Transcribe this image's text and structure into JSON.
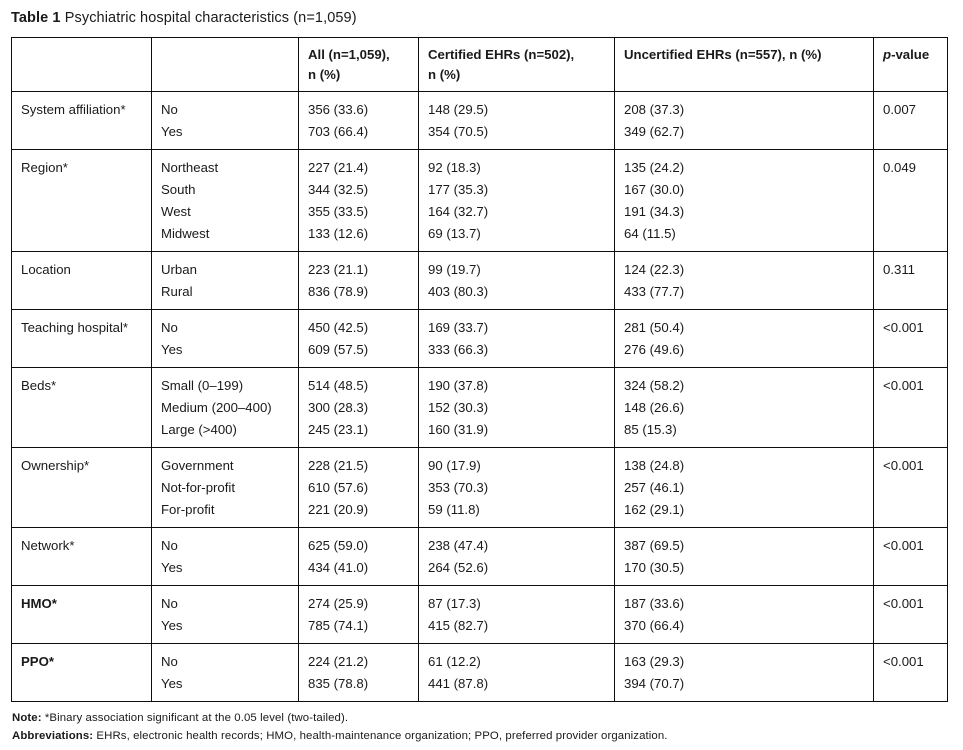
{
  "title": {
    "bold": "Table 1",
    "rest": " Psychiatric hospital characteristics (n=1,059)"
  },
  "table": {
    "header": {
      "all_line1": "All (n=1,059),",
      "all_line2": "n (%)",
      "certified_line1": "Certified EHRs (n=502),",
      "certified_line2": "n (%)",
      "uncertified": "Uncertified EHRs (n=557), n (%)",
      "p_italic": "p",
      "p_rest": "-value"
    },
    "groups": [
      {
        "category": "System affiliation*",
        "bold": false,
        "p": "0.007",
        "rows": [
          {
            "label": "No",
            "all": "356 (33.6)",
            "certified": "148 (29.5)",
            "uncertified": "208 (37.3)"
          },
          {
            "label": "Yes",
            "all": "703 (66.4)",
            "certified": "354 (70.5)",
            "uncertified": "349 (62.7)"
          }
        ]
      },
      {
        "category": "Region*",
        "bold": false,
        "p": "0.049",
        "rows": [
          {
            "label": "Northeast",
            "all": "227 (21.4)",
            "certified": "92 (18.3)",
            "uncertified": "135 (24.2)"
          },
          {
            "label": "South",
            "all": "344 (32.5)",
            "certified": "177 (35.3)",
            "uncertified": "167 (30.0)"
          },
          {
            "label": "West",
            "all": "355 (33.5)",
            "certified": "164 (32.7)",
            "uncertified": "191 (34.3)"
          },
          {
            "label": "Midwest",
            "all": "133 (12.6)",
            "certified": "69 (13.7)",
            "uncertified": "64 (11.5)"
          }
        ]
      },
      {
        "category": "Location",
        "bold": false,
        "p": "0.311",
        "rows": [
          {
            "label": "Urban",
            "all": "223 (21.1)",
            "certified": "99 (19.7)",
            "uncertified": "124 (22.3)"
          },
          {
            "label": "Rural",
            "all": "836 (78.9)",
            "certified": "403 (80.3)",
            "uncertified": "433 (77.7)"
          }
        ]
      },
      {
        "category": "Teaching hospital*",
        "bold": false,
        "p": "<0.001",
        "rows": [
          {
            "label": "No",
            "all": "450 (42.5)",
            "certified": "169 (33.7)",
            "uncertified": "281 (50.4)"
          },
          {
            "label": "Yes",
            "all": "609 (57.5)",
            "certified": "333 (66.3)",
            "uncertified": "276 (49.6)"
          }
        ]
      },
      {
        "category": "Beds*",
        "bold": false,
        "p": "<0.001",
        "rows": [
          {
            "label": "Small (0–199)",
            "all": "514 (48.5)",
            "certified": "190 (37.8)",
            "uncertified": "324 (58.2)"
          },
          {
            "label": "Medium (200–400)",
            "all": "300 (28.3)",
            "certified": "152 (30.3)",
            "uncertified": "148 (26.6)"
          },
          {
            "label": "Large (>400)",
            "all": "245 (23.1)",
            "certified": "160 (31.9)",
            "uncertified": "85 (15.3)"
          }
        ]
      },
      {
        "category": "Ownership*",
        "bold": false,
        "p": "<0.001",
        "rows": [
          {
            "label": "Government",
            "all": "228 (21.5)",
            "certified": "90 (17.9)",
            "uncertified": "138 (24.8)"
          },
          {
            "label": "Not-for-profit",
            "all": "610 (57.6)",
            "certified": "353 (70.3)",
            "uncertified": "257 (46.1)"
          },
          {
            "label": "For-profit",
            "all": "221 (20.9)",
            "certified": "59 (11.8)",
            "uncertified": "162 (29.1)"
          }
        ]
      },
      {
        "category": "Network*",
        "bold": false,
        "p": "<0.001",
        "rows": [
          {
            "label": "No",
            "all": "625 (59.0)",
            "certified": "238 (47.4)",
            "uncertified": "387 (69.5)"
          },
          {
            "label": "Yes",
            "all": "434 (41.0)",
            "certified": "264 (52.6)",
            "uncertified": "170 (30.5)"
          }
        ]
      },
      {
        "category": "HMO*",
        "bold": true,
        "p": "<0.001",
        "rows": [
          {
            "label": "No",
            "all": "274 (25.9)",
            "certified": "87 (17.3)",
            "uncertified": "187 (33.6)"
          },
          {
            "label": "Yes",
            "all": "785 (74.1)",
            "certified": "415 (82.7)",
            "uncertified": "370 (66.4)"
          }
        ]
      },
      {
        "category": "PPO*",
        "bold": true,
        "p": "<0.001",
        "rows": [
          {
            "label": "No",
            "all": "224 (21.2)",
            "certified": "61 (12.2)",
            "uncertified": "163 (29.3)"
          },
          {
            "label": "Yes",
            "all": "835 (78.8)",
            "certified": "441 (87.8)",
            "uncertified": "394 (70.7)"
          }
        ]
      }
    ]
  },
  "notes": {
    "note_label": "Note:",
    "note_text": " *Binary association significant at the 0.05 level (two-tailed).",
    "abbr_label": "Abbreviations:",
    "abbr_text": " EHRs, electronic health records; HMO, health-maintenance organization; PPO, preferred provider organization."
  }
}
